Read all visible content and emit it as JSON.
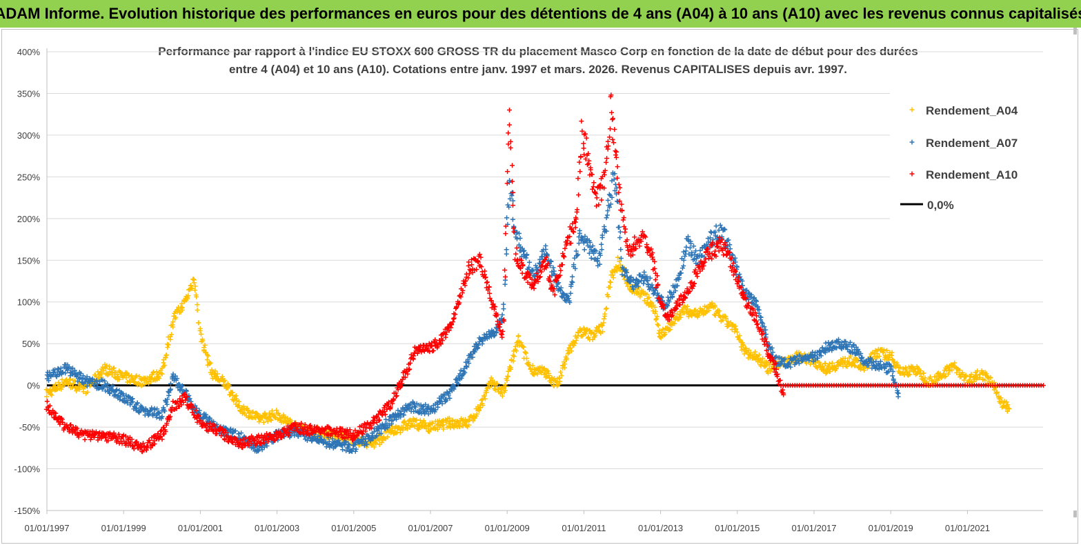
{
  "banner": {
    "title": "ADAM Informe. Evolution historique des performances en euros pour des détentions de 4 ans (A04) à 10 ans (A10) avec les revenus connus capitalisés"
  },
  "chart_data": {
    "type": "scatter",
    "title_line1": "Performance par rapport à l'indice EU STOXX 600 GROSS TR  du placement Masco Corp en fonction de la date de début pour des durées",
    "title_line2": "entre 4 (A04) et 10 ans (A10). Cotations entre janv. 1997 et mars. 2026. Revenus CAPITALISES depuis avr. 1997.",
    "xlabel": "",
    "ylabel": "",
    "x_range": [
      1997.0,
      2023.0
    ],
    "ylim": [
      -150,
      400
    ],
    "y_ticks": [
      400,
      350,
      300,
      250,
      200,
      150,
      100,
      50,
      0,
      -50,
      -100,
      -150
    ],
    "y_tick_labels": [
      "400%",
      "350%",
      "300%",
      "250%",
      "200%",
      "150%",
      "100%",
      "50%",
      "0%",
      "-50%",
      "-100%",
      "-150%"
    ],
    "x_tick_labels": [
      "01/01/1997",
      "01/01/1999",
      "01/01/2001",
      "01/01/2003",
      "01/01/2005",
      "01/01/2007",
      "01/01/2009",
      "01/01/2011",
      "01/01/2013",
      "01/01/2015",
      "01/01/2017",
      "01/01/2019",
      "01/01/2021"
    ],
    "grid": "horizontal",
    "legend_position": "top-right",
    "legend": [
      "Rendement_A04",
      "Rendement_A07",
      "Rendement_A10",
      "0,0%"
    ],
    "colors": {
      "A04": "#ffc000",
      "A07": "#2e75b6",
      "A10": "#ff0000",
      "zero": "#000000"
    },
    "series": [
      {
        "name": "Rendement_A04",
        "color": "#ffc000",
        "x": [
          1997.0,
          1997.5,
          1998.0,
          1998.5,
          1999.0,
          1999.5,
          2000.0,
          2000.3,
          2000.6,
          2000.85,
          2001.0,
          2001.3,
          2001.7,
          2002.0,
          2002.5,
          2003.0,
          2003.5,
          2004.0,
          2004.5,
          2005.0,
          2005.5,
          2006.0,
          2006.5,
          2007.0,
          2007.5,
          2008.0,
          2008.3,
          2008.6,
          2008.9,
          2009.1,
          2009.3,
          2009.6,
          2010.0,
          2010.3,
          2010.6,
          2010.9,
          2011.2,
          2011.5,
          2011.7,
          2011.9,
          2012.2,
          2012.5,
          2012.8,
          2013.0,
          2013.3,
          2013.6,
          2014.0,
          2014.3,
          2014.6,
          2014.9,
          2015.2,
          2015.5,
          2015.8,
          2016.0,
          2016.3,
          2016.6,
          2017.0,
          2017.3,
          2017.6,
          2018.0,
          2018.3,
          2018.6,
          2019.0,
          2019.3,
          2019.6,
          2020.0,
          2020.3,
          2020.6,
          2021.0,
          2021.3,
          2021.6,
          2021.9,
          2022.1
        ],
        "values": [
          -10,
          5,
          -5,
          20,
          10,
          5,
          15,
          80,
          100,
          130,
          60,
          15,
          0,
          -25,
          -40,
          -35,
          -50,
          -55,
          -60,
          -65,
          -70,
          -55,
          -45,
          -50,
          -45,
          -45,
          -25,
          5,
          -10,
          25,
          55,
          20,
          15,
          0,
          40,
          65,
          60,
          70,
          130,
          150,
          120,
          110,
          95,
          60,
          75,
          90,
          85,
          95,
          80,
          70,
          40,
          35,
          20,
          25,
          30,
          35,
          30,
          20,
          25,
          30,
          20,
          40,
          35,
          15,
          20,
          5,
          10,
          25,
          5,
          15,
          5,
          -20,
          -28
        ]
      },
      {
        "name": "Rendement_A07",
        "color": "#2e75b6",
        "x": [
          1997.0,
          1997.5,
          1998.0,
          1998.5,
          1999.0,
          1999.5,
          2000.0,
          2000.3,
          2000.6,
          2001.0,
          2001.5,
          2002.0,
          2002.5,
          2003.0,
          2003.5,
          2004.0,
          2004.5,
          2005.0,
          2005.5,
          2006.0,
          2006.5,
          2007.0,
          2007.5,
          2008.0,
          2008.3,
          2008.6,
          2008.9,
          2009.05,
          2009.2,
          2009.4,
          2009.7,
          2010.0,
          2010.3,
          2010.6,
          2010.9,
          2011.2,
          2011.4,
          2011.6,
          2011.8,
          2012.0,
          2012.3,
          2012.6,
          2012.9,
          2013.1,
          2013.4,
          2013.7,
          2014.0,
          2014.3,
          2014.6,
          2014.9,
          2015.2,
          2015.5,
          2015.8,
          2016.0,
          2016.3,
          2016.6,
          2017.0,
          2017.3,
          2017.6,
          2018.0,
          2018.3,
          2018.6,
          2019.0,
          2019.2
        ],
        "values": [
          10,
          20,
          5,
          0,
          -15,
          -30,
          -35,
          10,
          -10,
          -35,
          -55,
          -60,
          -75,
          -60,
          -55,
          -65,
          -70,
          -75,
          -60,
          -40,
          -25,
          -30,
          -10,
          30,
          55,
          60,
          80,
          250,
          190,
          160,
          130,
          165,
          120,
          100,
          180,
          160,
          150,
          200,
          255,
          140,
          120,
          130,
          110,
          95,
          120,
          170,
          150,
          175,
          185,
          150,
          110,
          100,
          50,
          30,
          25,
          30,
          35,
          45,
          50,
          45,
          30,
          25,
          20,
          -10
        ]
      },
      {
        "name": "Rendement_A10",
        "color": "#ff0000",
        "x": [
          1997.0,
          1997.5,
          1998.0,
          1998.5,
          1999.0,
          1999.5,
          2000.0,
          2000.3,
          2000.6,
          2001.0,
          2001.5,
          2002.0,
          2002.5,
          2003.0,
          2003.5,
          2004.0,
          2004.5,
          2005.0,
          2005.5,
          2006.0,
          2006.3,
          2006.6,
          2007.0,
          2007.3,
          2007.6,
          2008.0,
          2008.3,
          2008.6,
          2008.9,
          2009.05,
          2009.2,
          2009.4,
          2009.7,
          2010.0,
          2010.2,
          2010.5,
          2010.8,
          2010.95,
          2011.1,
          2011.3,
          2011.5,
          2011.7,
          2011.8,
          2012.0,
          2012.2,
          2012.5,
          2012.8,
          2013.0,
          2013.2,
          2013.5,
          2013.8,
          2014.0,
          2014.3,
          2014.6,
          2014.9,
          2015.2,
          2015.5,
          2015.8,
          2016.0,
          2016.2
        ],
        "values": [
          -25,
          -50,
          -60,
          -60,
          -65,
          -75,
          -60,
          -25,
          -15,
          -45,
          -55,
          -70,
          -65,
          -60,
          -50,
          -55,
          -55,
          -60,
          -45,
          -20,
          10,
          40,
          45,
          55,
          80,
          140,
          150,
          100,
          60,
          335,
          160,
          140,
          120,
          150,
          110,
          160,
          200,
          300,
          280,
          220,
          240,
          330,
          300,
          200,
          160,
          180,
          150,
          100,
          80,
          100,
          120,
          140,
          160,
          170,
          140,
          100,
          80,
          40,
          20,
          -15
        ]
      }
    ],
    "reference_line": {
      "name": "0,0%",
      "value": 0
    },
    "a10_flat_segment": {
      "x_start": 2016.2,
      "x_end": 2023.0,
      "value": 0
    }
  }
}
